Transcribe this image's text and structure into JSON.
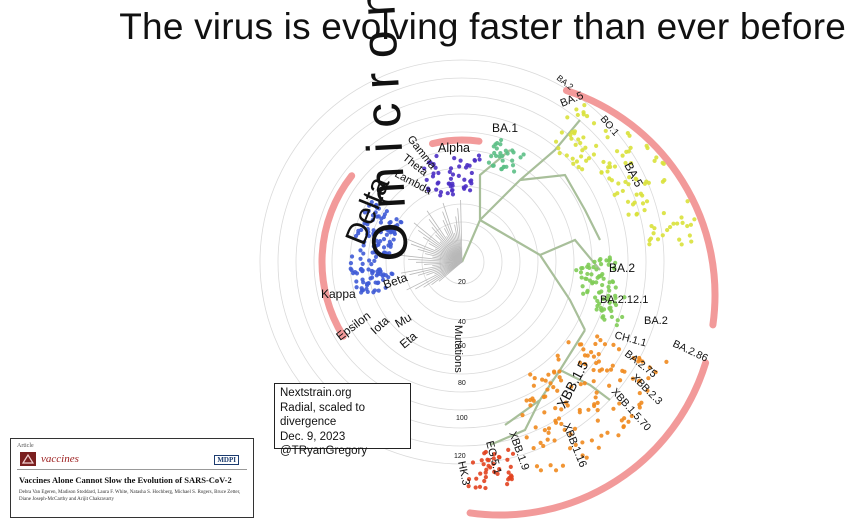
{
  "title": "The virus is evolving faster than ever before",
  "labels": {
    "omicron": "Omicron",
    "delta": "Delta",
    "alpha": "Alpha",
    "gamma": "Gamma",
    "theta": "Theta",
    "lambda": "Lambda",
    "kappa": "Kappa",
    "beta": "Beta",
    "epsilon": "Epsilon",
    "iota": "Iota",
    "mu": "Mu",
    "eta": "Eta",
    "ba1": "BA.1",
    "ba2_top": "BA.2",
    "ba5_top": "BA.5",
    "bo1": "BO.1",
    "ba5": "BA.5",
    "ba2": "BA.2",
    "ba2121": "BA.2.12.1",
    "ba2_lower": "BA.2",
    "ch11": "CH.1.1",
    "ba286": "BA.2.86",
    "ba275": "BA.2.75",
    "xbb23": "XBB.2.3",
    "xbb15": "XBB.1.5",
    "xbb1570": "XBB.1.5.70",
    "xbb116": "XBB.1.16",
    "xbb19": "XBB.1.9",
    "eg51": "EG.5.1",
    "hk3": "HK.3",
    "mutations": "Mutations",
    "tick20": "20",
    "tick40": "40",
    "tick60": "60",
    "tick80": "80",
    "tick100": "100",
    "tick120": "120"
  },
  "infobox": {
    "line1": "Nextstrain.org",
    "line2": "Radial, scaled to divergence",
    "line3": "Dec. 9, 2023",
    "line4": "@TRyanGregory"
  },
  "paper": {
    "article_type": "Article",
    "journal": "vaccines",
    "publisher": "MDPI",
    "title": "Vaccines Alone Cannot Slow the Evolution of SARS-CoV-2",
    "authors": "Debra Van Egeren, Madison Stoddard, Laura F. White, Natasha S. Hochberg, Michael S. Rogers, Bruce Zetter, Diane Joseph-McCarthy and Arijit Chakravarty"
  },
  "colors": {
    "highlight": "#f29a9a",
    "delta": "#3f5bd6",
    "alpha": "#4b2fc4",
    "ba1": "#5cbf86",
    "ba5": "#d9e13b",
    "ba2": "#7fcc56",
    "xbb": "#f08a1e",
    "late": "#e2421f",
    "ring": "#dadada",
    "branch_omicron": "#a8bf9a",
    "branch_early": "#b8b8b8"
  }
}
